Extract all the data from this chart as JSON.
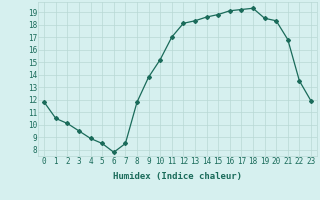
{
  "xlabel": "Humidex (Indice chaleur)",
  "x": [
    0,
    1,
    2,
    3,
    4,
    5,
    6,
    7,
    8,
    9,
    10,
    11,
    12,
    13,
    14,
    15,
    16,
    17,
    18,
    19,
    20,
    21,
    22,
    23
  ],
  "y": [
    11.8,
    10.5,
    10.1,
    9.5,
    8.9,
    8.5,
    7.8,
    8.5,
    11.8,
    13.8,
    15.2,
    17.0,
    18.1,
    18.3,
    18.6,
    18.8,
    19.1,
    19.2,
    19.3,
    18.5,
    18.3,
    16.8,
    13.5,
    11.9
  ],
  "line_color": "#1a6b5a",
  "bg_color": "#d6f0ef",
  "grid_color": "#b8d8d4",
  "ylim_min": 7.5,
  "ylim_max": 19.8,
  "yticks": [
    8,
    9,
    10,
    11,
    12,
    13,
    14,
    15,
    16,
    17,
    18,
    19
  ],
  "xticks": [
    0,
    1,
    2,
    3,
    4,
    5,
    6,
    7,
    8,
    9,
    10,
    11,
    12,
    13,
    14,
    15,
    16,
    17,
    18,
    19,
    20,
    21,
    22,
    23
  ],
  "tick_label_fontsize": 5.5,
  "xlabel_fontsize": 6.5,
  "marker": "D",
  "marker_size": 2.0,
  "line_width": 0.9
}
